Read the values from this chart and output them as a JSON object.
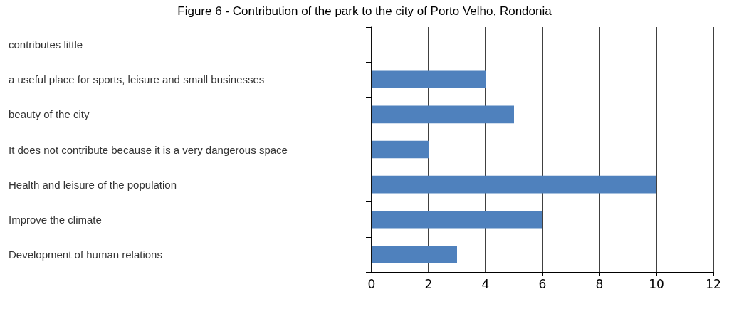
{
  "chart_data": {
    "type": "bar",
    "orientation": "horizontal",
    "title": "Figure 6 - Contribution of the park to the city of Porto Velho, Rondonia",
    "categories": [
      "contributes little",
      "a useful place for sports, leisure and small businesses",
      "beauty of the city",
      "It does not contribute because it is a very dangerous space",
      "Health and leisure of the population",
      "Improve the climate",
      "Development of human relations"
    ],
    "values": [
      0,
      4,
      5,
      2,
      10,
      6,
      3
    ],
    "color": "#4f81bd",
    "xlim": [
      0,
      12
    ],
    "xticks": [
      0,
      2,
      4,
      6,
      8,
      10,
      12
    ],
    "grid": "x"
  }
}
